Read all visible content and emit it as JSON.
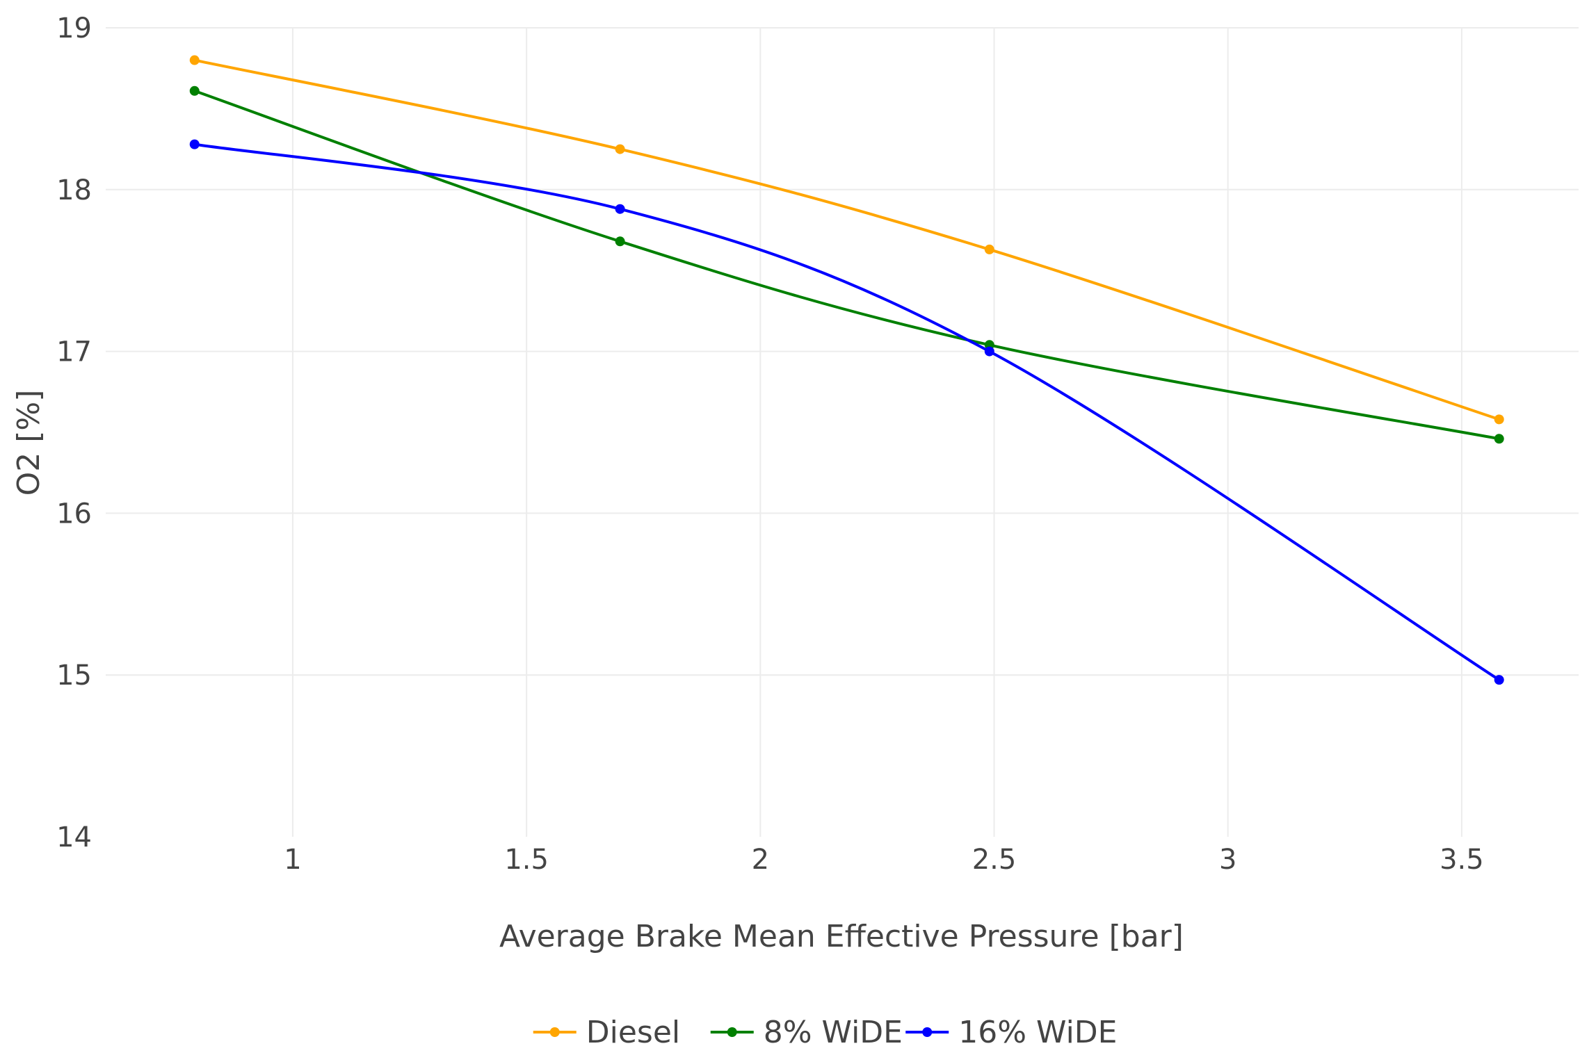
{
  "chart_data": {
    "type": "line",
    "title": "",
    "xlabel": "Average Brake Mean Effective Pressure [bar]",
    "ylabel": "O2 [%]",
    "xlim": [
      0.6,
      3.75
    ],
    "ylim": [
      14,
      19
    ],
    "x_ticks": [
      1,
      1.5,
      2,
      2.5,
      3,
      3.5
    ],
    "x_tick_labels": [
      "1",
      "1.5",
      "2",
      "2.5",
      "3",
      "3.5"
    ],
    "y_ticks": [
      14,
      15,
      16,
      17,
      18,
      19
    ],
    "y_tick_labels": [
      "14",
      "15",
      "16",
      "17",
      "18",
      "19"
    ],
    "grid": true,
    "legend_position": "bottom-center",
    "series": [
      {
        "name": "Diesel",
        "color": "#ffa500",
        "x": [
          0.79,
          1.7,
          2.49,
          3.58
        ],
        "y": [
          18.8,
          18.25,
          17.63,
          16.58
        ]
      },
      {
        "name": "8% WiDE",
        "color": "#008000",
        "x": [
          0.79,
          1.7,
          2.49,
          3.58
        ],
        "y": [
          18.61,
          17.68,
          17.04,
          16.46
        ]
      },
      {
        "name": "16% WiDE",
        "color": "#0000ff",
        "x": [
          0.79,
          1.7,
          2.49,
          3.58
        ],
        "y": [
          18.28,
          17.88,
          17.0,
          14.97
        ]
      }
    ]
  }
}
